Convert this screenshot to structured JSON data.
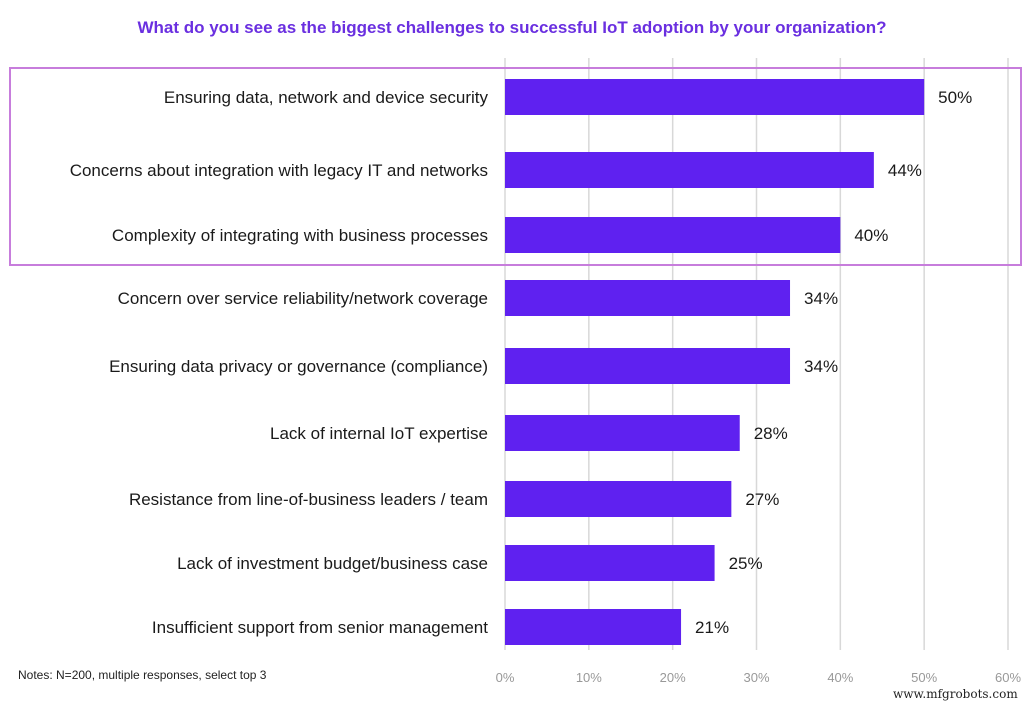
{
  "chart_data": {
    "type": "bar",
    "orientation": "horizontal",
    "title": "What do you see as the biggest challenges to successful IoT adoption by your organization?",
    "categories": [
      "Ensuring data, network and device security",
      "Concerns about integration with legacy IT and networks",
      "Complexity of integrating with business processes",
      "Concern over service reliability/network coverage",
      "Ensuring data privacy or governance (compliance)",
      "Lack of internal IoT expertise",
      "Resistance from line-of-business leaders / team",
      "Lack of investment budget/business case",
      "Insufficient support from senior management"
    ],
    "values": [
      50,
      44,
      40,
      34,
      34,
      28,
      27,
      25,
      21
    ],
    "data_labels": [
      "50%",
      "44%",
      "40%",
      "34%",
      "34%",
      "28%",
      "27%",
      "25%",
      "21%"
    ],
    "xlim": [
      0,
      60
    ],
    "xticks": [
      "0%",
      "10%",
      "20%",
      "30%",
      "40%",
      "50%",
      "60%"
    ],
    "grid": true,
    "highlighted_categories": 3,
    "colors": {
      "bar": "#5f21f0",
      "title": "#6a2fe0",
      "highlight_box": "#c77ddc",
      "grid": "#d8d8d8",
      "tick": "#999999"
    }
  },
  "notes": "Notes: N=200, multiple responses, select top 3",
  "watermark": "www.mfgrobots.com"
}
